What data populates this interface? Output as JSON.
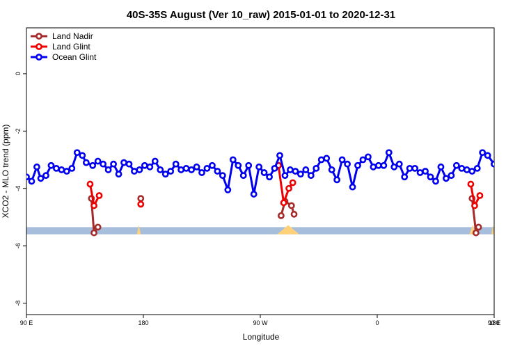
{
  "chart_data": {
    "type": "line",
    "title": "40S-35S August (Ver 10_raw)   2015-01-01 to 2020-12-31",
    "xlabel": "Longitude",
    "ylabel": "XCO2 - MLO trend (ppm)",
    "xlim": [
      90,
      450
    ],
    "ylim": [
      -8.4,
      1.6
    ],
    "x_ticks": [
      {
        "value": 90,
        "label": "90 E"
      },
      {
        "value": 180,
        "label": "180"
      },
      {
        "value": 270,
        "label": "90 W"
      },
      {
        "value": 360,
        "label": "0"
      },
      {
        "value": 450,
        "label": "90 E"
      },
      {
        "value": 540,
        "label": "180"
      }
    ],
    "y_ticks": [
      {
        "value": 0,
        "label": "0"
      },
      {
        "value": -2,
        "label": "-2"
      },
      {
        "value": -4,
        "label": "-4"
      },
      {
        "value": -6,
        "label": "-6"
      },
      {
        "value": -8,
        "label": "-8"
      }
    ],
    "legend_position": "top-left",
    "grid": false,
    "land_band": {
      "y_min": -5.6,
      "y_max": -5.35,
      "ocean_color": "#a6bddb",
      "land_color": "#ffd27a"
    },
    "land_segments": [
      [
        140,
        143
      ],
      [
        175,
        178
      ],
      [
        283,
        300
      ],
      [
        431,
        436
      ],
      [
        448,
        450
      ]
    ],
    "series": [
      {
        "name": "Land Nadir",
        "color": "#a52a2a",
        "segments": [
          {
            "x": [
              140,
              142,
              145
            ],
            "y": [
              -4.35,
              -5.55,
              -5.35
            ]
          },
          {
            "x": [
              178
            ],
            "y": [
              -4.35
            ]
          },
          {
            "x": [
              286,
              289,
              294,
              296
            ],
            "y": [
              -4.95,
              -4.45,
              -4.6,
              -4.9
            ]
          },
          {
            "x": [
              433,
              436,
              438
            ],
            "y": [
              -4.35,
              -5.55,
              -5.35
            ]
          },
          {
            "x": [
              540
            ],
            "y": [
              -4.35
            ]
          }
        ]
      },
      {
        "name": "Land Glint",
        "color": "#ee0000",
        "segments": [
          {
            "x": [
              139,
              142,
              146
            ],
            "y": [
              -3.85,
              -4.6,
              -4.25
            ]
          },
          {
            "x": [
              178
            ],
            "y": [
              -4.55
            ]
          },
          {
            "x": [
              284,
              288,
              292,
              295
            ],
            "y": [
              -3.2,
              -4.5,
              -4.0,
              -3.8
            ]
          },
          {
            "x": [
              432,
              435,
              439
            ],
            "y": [
              -3.85,
              -4.6,
              -4.25
            ]
          },
          {
            "x": [
              540
            ],
            "y": [
              -4.55
            ]
          }
        ]
      },
      {
        "name": "Ocean Glint",
        "color": "#0000ee",
        "segments": [
          {
            "x": [
              90,
              94,
              98,
              101,
              105,
              109,
              113,
              117,
              121,
              125,
              129,
              133,
              136,
              141,
              145,
              149,
              153,
              157,
              161,
              165,
              169,
              173,
              177,
              181,
              185,
              189,
              193,
              197,
              201,
              205,
              209,
              213,
              217,
              221,
              225,
              229,
              233,
              237,
              241,
              245,
              249,
              253,
              257,
              261,
              265,
              269,
              273,
              277,
              281,
              285,
              289,
              293,
              297,
              301,
              305,
              309,
              313,
              317,
              321,
              325,
              329,
              333,
              337,
              341,
              345,
              349,
              353,
              357,
              361,
              365,
              369,
              373,
              377,
              381,
              385,
              389,
              393,
              397,
              401,
              405,
              409,
              413,
              417,
              421,
              425,
              429,
              433,
              437,
              441,
              445,
              450
            ],
            "y": [
              -3.6,
              -3.75,
              -3.25,
              -3.65,
              -3.55,
              -3.2,
              -3.3,
              -3.35,
              -3.4,
              -3.3,
              -2.75,
              -2.85,
              -3.1,
              -3.2,
              -3.05,
              -3.15,
              -3.35,
              -3.15,
              -3.5,
              -3.1,
              -3.15,
              -3.4,
              -3.35,
              -3.2,
              -3.25,
              -3.05,
              -3.35,
              -3.5,
              -3.4,
              -3.15,
              -3.35,
              -3.3,
              -3.35,
              -3.25,
              -3.45,
              -3.3,
              -3.2,
              -3.4,
              -3.55,
              -4.05,
              -3.0,
              -3.2,
              -3.55,
              -3.2,
              -4.2,
              -3.25,
              -3.45,
              -3.6,
              -3.3,
              -2.85,
              -3.55,
              -3.35,
              -3.4,
              -3.5,
              -3.35,
              -3.55,
              -3.3,
              -3.0,
              -2.95,
              -3.35,
              -3.7,
              -3.0,
              -3.15,
              -3.95,
              -3.2,
              -3.0,
              -2.9,
              -3.25,
              -3.2,
              -3.2,
              -2.75,
              -3.25,
              -3.15,
              -3.6,
              -3.3,
              -3.3,
              -3.45,
              -3.4,
              -3.6,
              -3.75,
              -3.25,
              -3.65,
              -3.55,
              -3.2,
              -3.3,
              -3.35,
              -3.4,
              -3.3,
              -2.75,
              -2.85,
              -3.15
            ]
          },
          {
            "x": [
              450,
              454,
              458,
              462,
              466
            ],
            "y": [
              -3.15,
              -3.2,
              -3.05,
              -3.15,
              -3.35
            ]
          }
        ]
      }
    ]
  }
}
